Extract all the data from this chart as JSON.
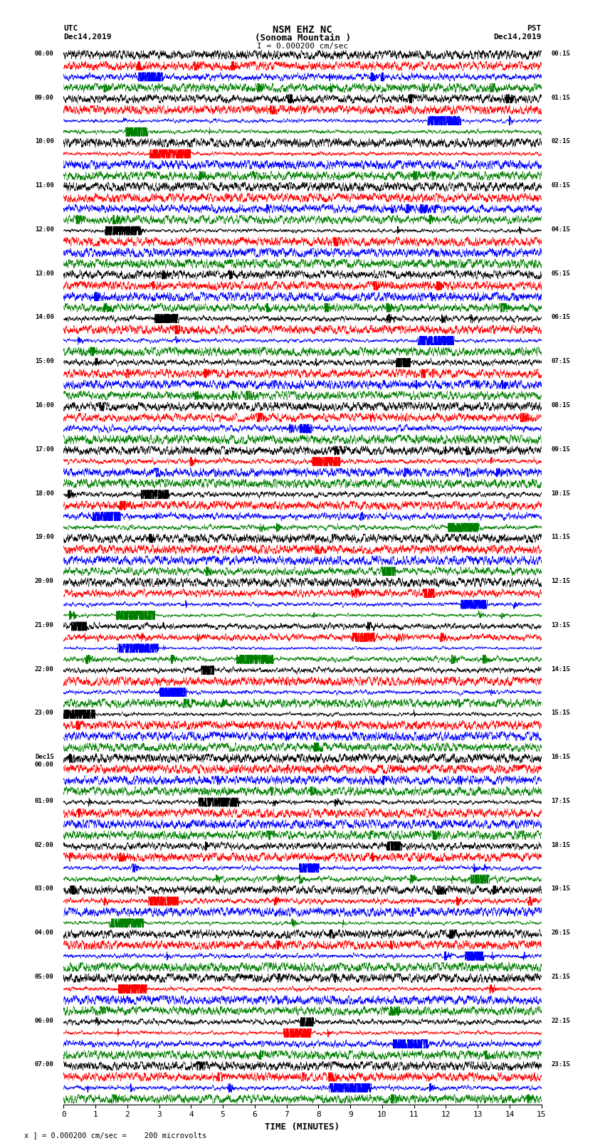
{
  "title_line1": "NSM EHZ NC",
  "title_line2": "(Sonoma Mountain )",
  "title_scale": "I = 0.000200 cm/sec",
  "label_utc": "UTC",
  "label_pst": "PST",
  "date_left": "Dec14,2019",
  "date_right": "Dec14,2019",
  "xlabel": "TIME (MINUTES)",
  "footer": "x ] = 0.000200 cm/sec =    200 microvolts",
  "left_times": [
    "08:00",
    "09:00",
    "10:00",
    "11:00",
    "12:00",
    "13:00",
    "14:00",
    "15:00",
    "16:00",
    "17:00",
    "18:00",
    "19:00",
    "20:00",
    "21:00",
    "22:00",
    "23:00",
    "Dec15\n00:00",
    "01:00",
    "02:00",
    "03:00",
    "04:00",
    "05:00",
    "06:00",
    "07:00"
  ],
  "right_times": [
    "00:15",
    "01:15",
    "02:15",
    "03:15",
    "04:15",
    "05:15",
    "06:15",
    "07:15",
    "08:15",
    "09:15",
    "10:15",
    "11:15",
    "12:15",
    "13:15",
    "14:15",
    "15:15",
    "16:15",
    "17:15",
    "18:15",
    "19:15",
    "20:15",
    "21:15",
    "22:15",
    "23:15"
  ],
  "num_rows": 24,
  "traces_per_row": 4,
  "colors": [
    "black",
    "red",
    "blue",
    "green"
  ],
  "bg_color": "#ffffff",
  "x_ticks": [
    0,
    1,
    2,
    3,
    4,
    5,
    6,
    7,
    8,
    9,
    10,
    11,
    12,
    13,
    14,
    15
  ],
  "x_lim": [
    0,
    15
  ]
}
